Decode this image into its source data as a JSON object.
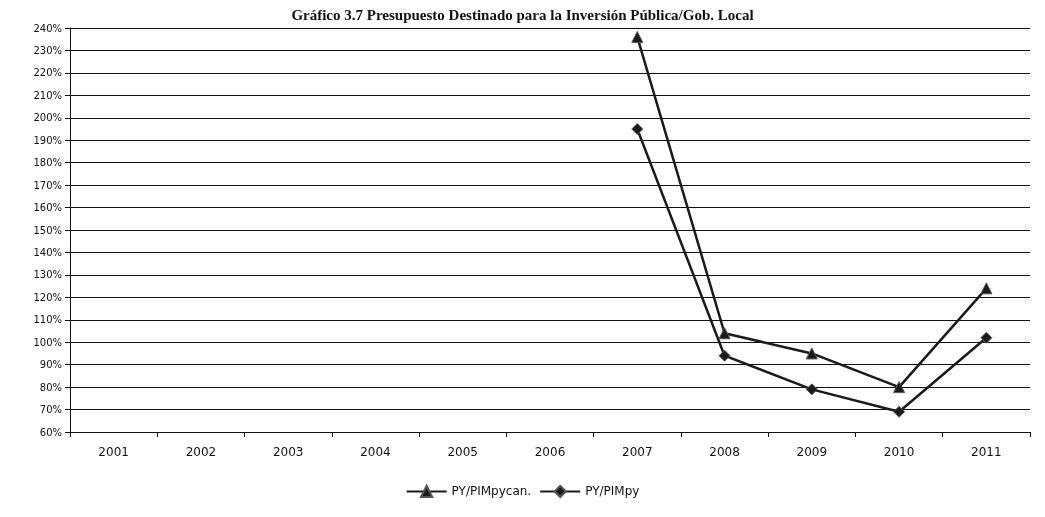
{
  "chart_data": {
    "type": "line",
    "title": "Gráfico 3.7 Presupuesto Destinado para la Inversión Pública/Gob. Local",
    "categories": [
      "2001",
      "2002",
      "2003",
      "2004",
      "2005",
      "2006",
      "2007",
      "2008",
      "2009",
      "2010",
      "2011"
    ],
    "series": [
      {
        "name": "PY/PIMpycan.",
        "color": "#1a1a1a",
        "marker": "triangle",
        "values": [
          null,
          null,
          null,
          null,
          null,
          null,
          236,
          104,
          95,
          80,
          124
        ]
      },
      {
        "name": "PY/PIMpy",
        "color": "#1a1a1a",
        "marker": "diamond",
        "values": [
          null,
          null,
          null,
          null,
          null,
          null,
          195,
          94,
          79,
          69,
          102
        ]
      }
    ],
    "ylim": [
      60,
      240
    ],
    "yticks": [
      {
        "value": 60,
        "label": "60%"
      },
      {
        "value": 70,
        "label": "70%"
      },
      {
        "value": 80,
        "label": "80%"
      },
      {
        "value": 90,
        "label": "90%"
      },
      {
        "value": 100,
        "label": "100%"
      },
      {
        "value": 110,
        "label": "110%"
      },
      {
        "value": 120,
        "label": "120%"
      },
      {
        "value": 130,
        "label": "130%"
      },
      {
        "value": 140,
        "label": "140%"
      },
      {
        "value": 150,
        "label": "150%"
      },
      {
        "value": 160,
        "label": "160%"
      },
      {
        "value": 170,
        "label": "170%"
      },
      {
        "value": 180,
        "label": "180%"
      },
      {
        "value": 190,
        "label": "190%"
      },
      {
        "value": 200,
        "label": "200%"
      },
      {
        "value": 210,
        "label": "210%"
      },
      {
        "value": 220,
        "label": "220%"
      },
      {
        "value": 230,
        "label": "230%"
      },
      {
        "value": 240,
        "label": "240%"
      }
    ],
    "grid": "y",
    "legend": "bottom",
    "line_style": "solid"
  }
}
